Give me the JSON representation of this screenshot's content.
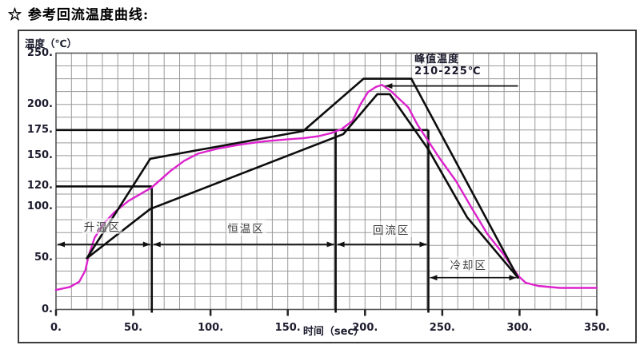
{
  "title": "☆ 参考回流温度曲线:",
  "chart_data": {
    "type": "line",
    "title": "参考回流温度曲线",
    "ylabel": "温度（℃）",
    "xlabel": "时间（sec）",
    "xlim": [
      0,
      350
    ],
    "ylim": [
      0,
      250
    ],
    "grid": true,
    "grid_step": {
      "x_sec": 10,
      "y_degC": 12.5
    },
    "x_ticks": [
      {
        "label": "0.",
        "value": 0
      },
      {
        "label": "50.",
        "value": 50
      },
      {
        "label": "100.",
        "value": 100
      },
      {
        "label": "150.",
        "value": 150
      },
      {
        "label": "200.",
        "value": 200
      },
      {
        "label": "250.",
        "value": 250
      },
      {
        "label": "300.",
        "value": 300
      },
      {
        "label": "350.",
        "value": 350
      }
    ],
    "y_ticks": [
      {
        "label": "250.",
        "value": 250
      },
      {
        "label": "200.",
        "value": 200
      },
      {
        "label": "175.",
        "value": 175
      },
      {
        "label": "150.",
        "value": 150
      },
      {
        "label": "120.",
        "value": 120
      },
      {
        "label": "100.",
        "value": 100
      },
      {
        "label": "50.",
        "value": 50
      },
      {
        "label": "0.",
        "value": 0
      }
    ],
    "series": [
      {
        "name": "typical_profile",
        "color": "#dc22cc",
        "points": [
          [
            0,
            19
          ],
          [
            9,
            22
          ],
          [
            15,
            27
          ],
          [
            19,
            38
          ],
          [
            21,
            52
          ],
          [
            25,
            70
          ],
          [
            31,
            84
          ],
          [
            38,
            95
          ],
          [
            47,
            106
          ],
          [
            54,
            112
          ],
          [
            62,
            119
          ],
          [
            74,
            135
          ],
          [
            83,
            145
          ],
          [
            92,
            152
          ],
          [
            105,
            157
          ],
          [
            120,
            161
          ],
          [
            135,
            164
          ],
          [
            150,
            166
          ],
          [
            160,
            167
          ],
          [
            170,
            169
          ],
          [
            178,
            172
          ],
          [
            185,
            176
          ],
          [
            192,
            184
          ],
          [
            197,
            200
          ],
          [
            202,
            212
          ],
          [
            207,
            217
          ],
          [
            211,
            219
          ],
          [
            216,
            214
          ],
          [
            221,
            207
          ],
          [
            228,
            197
          ],
          [
            234,
            180
          ],
          [
            241,
            164
          ],
          [
            248,
            148
          ],
          [
            259,
            125
          ],
          [
            269,
            99
          ],
          [
            279,
            74
          ],
          [
            290,
            53
          ],
          [
            299,
            33
          ],
          [
            304,
            26
          ],
          [
            312,
            23
          ],
          [
            326,
            21
          ],
          [
            350,
            21
          ]
        ]
      },
      {
        "name": "upper_limit",
        "color": "#0d0d0d",
        "points": [
          [
            20,
            50
          ],
          [
            61,
            147
          ],
          [
            160,
            174
          ],
          [
            199,
            225
          ],
          [
            230,
            225
          ],
          [
            299,
            31
          ]
        ]
      },
      {
        "name": "lower_limit",
        "color": "#0d0d0d",
        "points": [
          [
            20,
            50
          ],
          [
            61,
            98
          ],
          [
            186,
            171
          ],
          [
            208,
            210
          ],
          [
            216,
            210
          ],
          [
            241,
            156
          ],
          [
            266,
            90
          ],
          [
            299,
            31
          ]
        ]
      }
    ],
    "reference_lines": [
      {
        "temp": 175,
        "t_from": 0,
        "t_to": 241
      },
      {
        "temp": 120,
        "t_from": 0,
        "t_to": 62
      }
    ],
    "zone_boundaries": [
      {
        "t": 62,
        "temp_top": 119
      },
      {
        "t": 181,
        "temp_top": 175
      },
      {
        "t": 241,
        "temp_top": 175
      }
    ],
    "zones": [
      {
        "label": "升温区",
        "t_from": 0,
        "t_to": 62,
        "arrow_temp": 63.5,
        "label_t": 30,
        "label_temp": 81
      },
      {
        "label": "恒温区",
        "t_from": 62,
        "t_to": 181,
        "arrow_temp": 63.5,
        "label_t": 123,
        "label_temp": 80
      },
      {
        "label": "回流区",
        "t_from": 181,
        "t_to": 241,
        "arrow_temp": 63.5,
        "label_t": 217,
        "label_temp": 78
      },
      {
        "label": "冷却区",
        "t_from": 241,
        "t_to": 299,
        "arrow_temp": 31,
        "label_t": 267,
        "label_temp": 44
      }
    ],
    "peak_annotation": {
      "line1": "峰值温度",
      "line2": "210-225℃",
      "arrow_tip": {
        "t": 213,
        "temp": 218
      },
      "leader_end_t": 299,
      "text_t": 232,
      "text_temp": 249
    },
    "colors": {
      "typical": "#dc22cc",
      "limits": "#0d0d0d",
      "grid": "#9a9a9a",
      "labels": "#1c1c2e"
    }
  }
}
